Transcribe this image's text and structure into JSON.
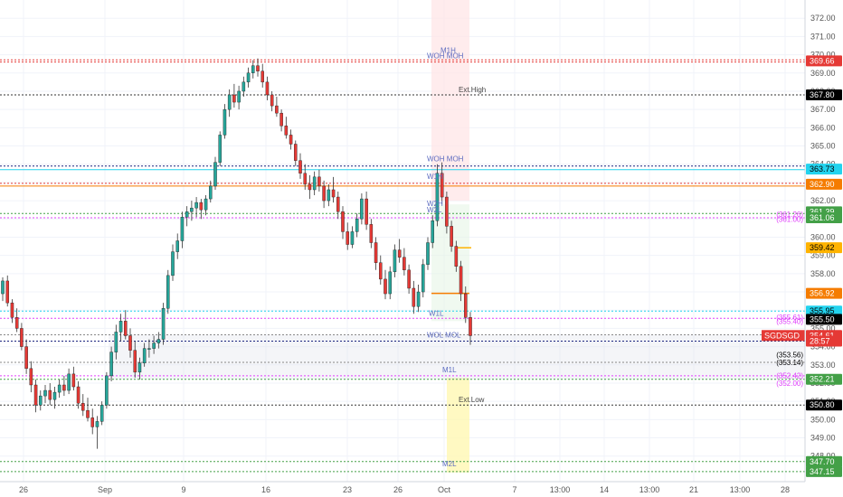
{
  "chart_data": {
    "type": "candlestick",
    "symbol": "SGDSGD",
    "y_range": [
      346.6,
      373.0
    ],
    "x_tick_labels": [
      "26",
      "Sep",
      "9",
      "16",
      "23",
      "26",
      "Oct",
      "7",
      "13:00",
      "14",
      "13:00",
      "21",
      "13:00",
      "28"
    ],
    "y_tick_labels": [
      "372.00",
      "371.00",
      "370.00",
      "369.00",
      "368.00",
      "367.00",
      "366.00",
      "365.00",
      "364.00",
      "363.00",
      "362.00",
      "361.00",
      "360.00",
      "359.00",
      "358.00",
      "357.00",
      "356.00",
      "355.00",
      "354.00",
      "353.00",
      "352.00",
      "351.00",
      "350.00",
      "349.00",
      "348.00"
    ],
    "price_tags": [
      {
        "label": "369.66",
        "price": 369.66,
        "bg": "#e53935",
        "fg": "#ffffff"
      },
      {
        "label": "367.80",
        "price": 367.8,
        "bg": "#000000",
        "fg": "#ffffff"
      },
      {
        "label": "363.73",
        "price": 363.73,
        "bg": "#22d3ee",
        "fg": "#000000"
      },
      {
        "label": "362.90",
        "price": 362.9,
        "bg": "#f57c00",
        "fg": "#ffffff"
      },
      {
        "label": "361.39",
        "price": 361.39,
        "bg": "#43a047",
        "fg": "#ffffff"
      },
      {
        "label": "361.06",
        "price": 361.06,
        "bg": "#43a047",
        "fg": "#ffffff"
      },
      {
        "label": "359.42",
        "price": 359.42,
        "bg": "#ffb300",
        "fg": "#000000"
      },
      {
        "label": "356.92",
        "price": 356.92,
        "bg": "#f57c00",
        "fg": "#ffffff"
      },
      {
        "label": "355.95",
        "price": 355.95,
        "bg": "#22d3ee",
        "fg": "#000000"
      },
      {
        "label": "355.50",
        "price": 355.5,
        "bg": "#000000",
        "fg": "#ffffff"
      },
      {
        "label": "354.61",
        "price": 354.61,
        "bg": "#e53935",
        "fg": "#ffffff"
      },
      {
        "label": "28:57",
        "price": 354.3,
        "bg": "#e53935",
        "fg": "#ffffff"
      },
      {
        "label": "352.21",
        "price": 352.21,
        "bg": "#43a047",
        "fg": "#ffffff"
      },
      {
        "label": "350.80",
        "price": 350.8,
        "bg": "#000000",
        "fg": "#ffffff"
      },
      {
        "label": "347.70",
        "price": 347.7,
        "bg": "#43a047",
        "fg": "#ffffff"
      },
      {
        "label": "347.15",
        "price": 347.15,
        "bg": "#43a047",
        "fg": "#ffffff"
      }
    ],
    "symbol_tag": {
      "label": "SGDSGD",
      "value": "354.61"
    },
    "levels": [
      {
        "name": "WOH",
        "price": 369.72,
        "color": "#e53935",
        "style": "dotted"
      },
      {
        "name": "MOH",
        "price": 369.6,
        "color": "#e53935",
        "style": "dotted"
      },
      {
        "name": "Ext.High",
        "price": 367.8,
        "color": "#333333",
        "style": "dotted"
      },
      {
        "name": "WOH",
        "price": 363.9,
        "color": "#1a237e",
        "style": "dotted"
      },
      {
        "name": "MOH",
        "price": 363.7,
        "color": "#22d3ee",
        "style": "solid"
      },
      {
        "name": "W1H",
        "price": 362.95,
        "color": "#e53935",
        "style": "dotted"
      },
      {
        "name": "",
        "price": 362.8,
        "color": "#f57c00",
        "style": "solid"
      },
      {
        "name": "W2L",
        "price": 361.3,
        "color": "#43a047",
        "style": "dotted"
      },
      {
        "name": "",
        "price": 361.06,
        "color": "#e040fb",
        "style": "dotted"
      },
      {
        "name": "",
        "price": 355.95,
        "color": "#22d3ee",
        "style": "dotted"
      },
      {
        "name": "",
        "price": 355.55,
        "color": "#e040fb",
        "style": "dotted"
      },
      {
        "name": "",
        "price": 354.65,
        "color": "#888888",
        "style": "dotted"
      },
      {
        "name": "WOL",
        "price": 354.3,
        "color": "#1a237e",
        "style": "dotted"
      },
      {
        "name": "",
        "price": 353.14,
        "color": "#888888",
        "style": "dotted"
      },
      {
        "name": "",
        "price": 352.4,
        "color": "#e040fb",
        "style": "dotted"
      },
      {
        "name": "M1L",
        "price": 352.21,
        "color": "#43a047",
        "style": "dotted"
      },
      {
        "name": "Ext.Low",
        "price": 350.8,
        "color": "#333333",
        "style": "dotted"
      },
      {
        "name": "",
        "price": 347.7,
        "color": "#43a047",
        "style": "dotted"
      },
      {
        "name": "M2L",
        "price": 347.15,
        "color": "#43a047",
        "style": "dotted"
      }
    ],
    "side_labels": [
      {
        "label": "(361.26)",
        "price": 361.26,
        "color": "#e040fb"
      },
      {
        "label": "(361.00)",
        "price": 361.0,
        "color": "#e040fb"
      },
      {
        "label": "(355.61)",
        "price": 355.61,
        "color": "#e040fb"
      },
      {
        "label": "(355.40)",
        "price": 355.4,
        "color": "#e040fb"
      },
      {
        "label": "(353.56)",
        "price": 353.56,
        "color": "#000000"
      },
      {
        "label": "(353.14)",
        "price": 353.14,
        "color": "#000000"
      },
      {
        "label": "(352.42)",
        "price": 352.42,
        "color": "#e040fb"
      },
      {
        "label": "(352.00)",
        "price": 352.0,
        "color": "#e040fb"
      }
    ],
    "zone_labels": [
      {
        "label": "WOH MOH",
        "price": 369.7
      },
      {
        "label": "M1H",
        "price": 370.0
      },
      {
        "label": "WOH MOH",
        "price": 364.05
      },
      {
        "label": "W1H",
        "price": 363.1
      },
      {
        "label": "W2H",
        "price": 361.6
      },
      {
        "label": "W2L",
        "price": 361.25
      },
      {
        "label": "W1L",
        "price": 355.6
      },
      {
        "label": "WOL MOL",
        "price": 354.4
      },
      {
        "label": "M1L",
        "price": 352.5
      },
      {
        "label": "M2L",
        "price": 347.35
      }
    ],
    "candles": [
      [
        356.9,
        357.8,
        356.5,
        357.6
      ],
      [
        357.6,
        357.9,
        356.2,
        356.4
      ],
      [
        356.4,
        356.6,
        355.3,
        355.6
      ],
      [
        355.6,
        356.1,
        354.8,
        355.0
      ],
      [
        355.0,
        355.3,
        353.8,
        354.0
      ],
      [
        354.0,
        354.4,
        352.5,
        352.8
      ],
      [
        352.8,
        353.2,
        351.5,
        351.9
      ],
      [
        351.9,
        352.2,
        350.4,
        350.8
      ],
      [
        350.8,
        351.6,
        350.5,
        351.3
      ],
      [
        351.3,
        351.9,
        350.9,
        351.6
      ],
      [
        351.6,
        352.0,
        350.8,
        351.1
      ],
      [
        351.1,
        351.8,
        350.6,
        351.5
      ],
      [
        351.5,
        352.2,
        351.2,
        351.9
      ],
      [
        351.9,
        352.4,
        351.3,
        351.6
      ],
      [
        351.6,
        352.8,
        351.4,
        352.5
      ],
      [
        352.5,
        352.9,
        351.6,
        351.8
      ],
      [
        351.8,
        352.1,
        350.6,
        350.9
      ],
      [
        350.9,
        351.4,
        350.2,
        350.5
      ],
      [
        350.5,
        351.2,
        349.9,
        350.1
      ],
      [
        350.1,
        350.6,
        349.2,
        349.6
      ],
      [
        349.6,
        350.2,
        348.4,
        349.9
      ],
      [
        349.9,
        351.0,
        349.7,
        350.8
      ],
      [
        350.8,
        352.6,
        350.6,
        352.4
      ],
      [
        352.4,
        354.0,
        352.1,
        353.7
      ],
      [
        353.7,
        355.2,
        353.3,
        354.8
      ],
      [
        354.8,
        355.8,
        354.3,
        355.4
      ],
      [
        355.4,
        356.0,
        354.4,
        354.6
      ],
      [
        354.6,
        355.0,
        353.4,
        353.8
      ],
      [
        353.8,
        354.3,
        352.3,
        352.6
      ],
      [
        352.6,
        353.4,
        352.2,
        353.1
      ],
      [
        353.1,
        354.2,
        352.9,
        353.9
      ],
      [
        353.9,
        354.4,
        353.4,
        353.9
      ],
      [
        353.9,
        354.6,
        353.6,
        354.2
      ],
      [
        354.2,
        354.8,
        353.9,
        354.4
      ],
      [
        354.4,
        356.4,
        354.1,
        356.1
      ],
      [
        356.1,
        358.2,
        355.8,
        357.9
      ],
      [
        357.9,
        359.6,
        357.6,
        359.2
      ],
      [
        359.2,
        360.2,
        358.8,
        359.8
      ],
      [
        359.8,
        361.4,
        359.4,
        361.1
      ],
      [
        361.1,
        361.7,
        360.6,
        361.4
      ],
      [
        361.4,
        362.0,
        360.9,
        361.6
      ],
      [
        361.6,
        362.2,
        361.1,
        361.9
      ],
      [
        361.9,
        362.1,
        361.0,
        361.5
      ],
      [
        361.5,
        362.3,
        361.2,
        362.1
      ],
      [
        362.1,
        363.1,
        361.9,
        362.8
      ],
      [
        362.8,
        364.4,
        362.6,
        364.1
      ],
      [
        364.1,
        365.8,
        363.9,
        365.6
      ],
      [
        365.6,
        367.3,
        365.4,
        367.0
      ],
      [
        367.0,
        368.1,
        366.6,
        367.8
      ],
      [
        367.8,
        368.4,
        367.1,
        367.4
      ],
      [
        367.4,
        368.3,
        367.0,
        368.0
      ],
      [
        368.0,
        368.8,
        367.7,
        368.5
      ],
      [
        368.5,
        369.3,
        368.2,
        369.0
      ],
      [
        369.0,
        369.7,
        368.7,
        369.4
      ],
      [
        369.4,
        369.8,
        368.8,
        369.1
      ],
      [
        369.1,
        369.5,
        368.2,
        368.5
      ],
      [
        368.5,
        368.8,
        367.5,
        367.8
      ],
      [
        367.8,
        368.0,
        366.9,
        367.2
      ],
      [
        367.2,
        367.7,
        366.6,
        366.8
      ],
      [
        366.8,
        367.0,
        365.8,
        366.1
      ],
      [
        366.1,
        366.6,
        365.4,
        365.6
      ],
      [
        365.6,
        365.9,
        364.8,
        365.1
      ],
      [
        365.1,
        365.3,
        363.9,
        364.2
      ],
      [
        364.2,
        364.6,
        363.2,
        363.5
      ],
      [
        363.5,
        364.0,
        362.6,
        362.9
      ],
      [
        362.9,
        363.4,
        362.1,
        362.6
      ],
      [
        362.6,
        363.6,
        362.3,
        363.3
      ],
      [
        363.3,
        363.7,
        362.5,
        362.8
      ],
      [
        362.8,
        363.1,
        361.6,
        362.0
      ],
      [
        362.0,
        362.9,
        361.7,
        362.6
      ],
      [
        362.6,
        363.3,
        361.9,
        362.2
      ],
      [
        362.2,
        362.5,
        361.0,
        361.4
      ],
      [
        361.4,
        361.7,
        359.9,
        360.3
      ],
      [
        360.3,
        360.8,
        359.3,
        359.6
      ],
      [
        359.6,
        360.6,
        359.4,
        360.3
      ],
      [
        360.3,
        361.3,
        360.0,
        361.0
      ],
      [
        361.0,
        362.4,
        360.7,
        362.1
      ],
      [
        362.1,
        362.5,
        360.4,
        360.7
      ],
      [
        360.7,
        361.0,
        359.4,
        359.7
      ],
      [
        359.7,
        360.0,
        358.2,
        358.6
      ],
      [
        358.6,
        359.0,
        357.4,
        357.7
      ],
      [
        357.7,
        358.2,
        356.6,
        356.9
      ],
      [
        356.9,
        358.4,
        356.6,
        358.1
      ],
      [
        358.1,
        359.6,
        357.8,
        359.3
      ],
      [
        359.3,
        359.9,
        358.6,
        358.9
      ],
      [
        358.9,
        359.4,
        357.9,
        358.2
      ],
      [
        358.2,
        358.5,
        356.9,
        357.2
      ],
      [
        357.2,
        357.6,
        355.8,
        356.2
      ],
      [
        356.2,
        357.4,
        355.9,
        357.0
      ],
      [
        357.0,
        358.8,
        356.7,
        358.5
      ],
      [
        358.5,
        360.0,
        358.2,
        359.7
      ],
      [
        359.7,
        361.2,
        359.4,
        360.9
      ],
      [
        360.9,
        364.0,
        360.6,
        363.5
      ],
      [
        363.5,
        364.1,
        361.8,
        362.2
      ],
      [
        362.2,
        362.5,
        360.2,
        360.6
      ],
      [
        360.6,
        360.9,
        359.2,
        359.5
      ],
      [
        359.5,
        359.8,
        358.1,
        358.4
      ],
      [
        358.4,
        358.7,
        356.5,
        356.9
      ],
      [
        356.9,
        357.3,
        355.3,
        355.6
      ],
      [
        355.6,
        355.9,
        354.1,
        354.6
      ]
    ]
  }
}
